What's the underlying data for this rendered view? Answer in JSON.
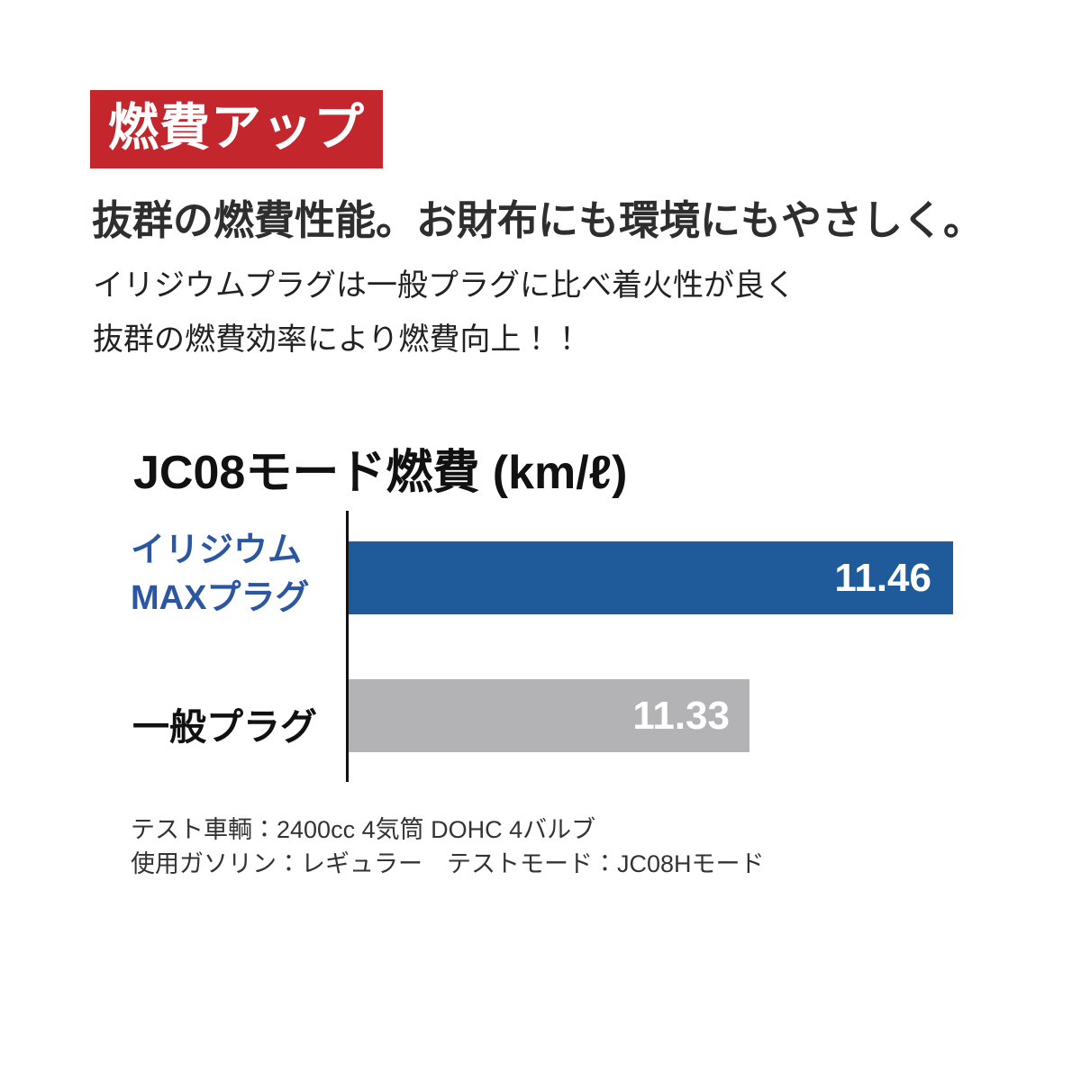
{
  "badge": {
    "label": "燃費アップ",
    "bg_color": "#C3262C",
    "text_color": "#FFFFFF"
  },
  "headline": "抜群の燃費性能。お財布にも環境にもやさしく。",
  "description": {
    "line1": "イリジウムプラグは一般プラグに比べ着火性が良く",
    "line2": "抜群の燃費効率により燃費向上！！"
  },
  "chart": {
    "title": "JC08モード燃費 (km/ℓ)",
    "bars": [
      {
        "label_line1": "イリジウム",
        "label_line2": "MAXプラグ",
        "value": "11.46",
        "color": "#1F5A9B",
        "label_color": "#2B57A2"
      },
      {
        "label": "一般プラグ",
        "value": "11.33",
        "color": "#B3B3B5",
        "label_color": "#111111"
      }
    ]
  },
  "chart_data": {
    "type": "bar",
    "orientation": "horizontal",
    "title": "JC08モード燃費 (km/ℓ)",
    "categories": [
      "イリジウムMAXプラグ",
      "一般プラグ"
    ],
    "values": [
      11.46,
      11.33
    ],
    "unit": "km/ℓ",
    "value_labels": [
      "11.46",
      "11.33"
    ],
    "bar_colors": [
      "#1F5A9B",
      "#B3B3B5"
    ],
    "legend": false,
    "grid": false,
    "axis_style": "single vertical baseline on left, no ticks, truncated scale"
  },
  "footnotes": {
    "line1": "テスト車輌：2400cc 4気筒 DOHC 4バルブ",
    "line2": "使用ガソリン：レギュラー　テストモード：JC08Hモード"
  }
}
